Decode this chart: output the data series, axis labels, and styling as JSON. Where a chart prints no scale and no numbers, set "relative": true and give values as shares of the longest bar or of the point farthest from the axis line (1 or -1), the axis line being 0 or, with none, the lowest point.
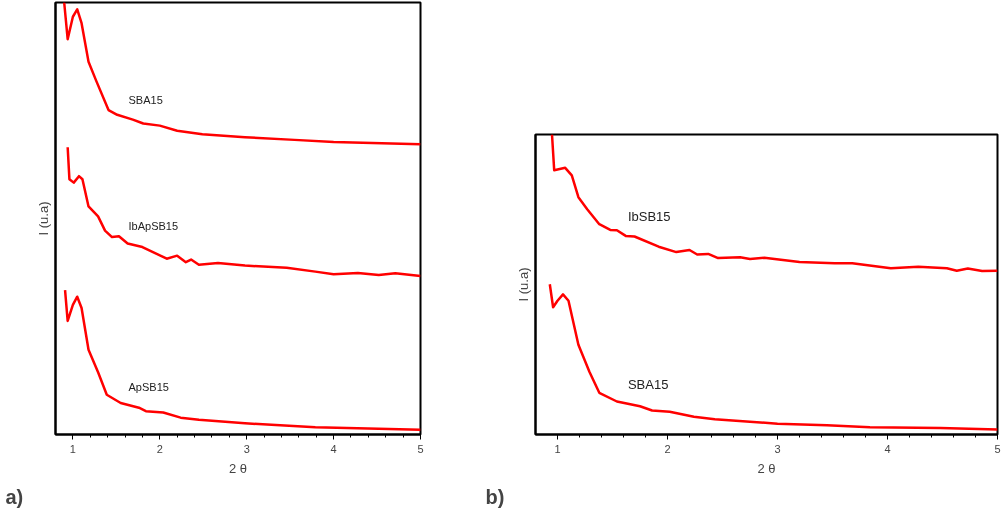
{
  "chart_data": [
    {
      "type": "line",
      "xlabel": "2 θ",
      "ylabel": "I (u.a)",
      "annotations": [
        "a)"
      ],
      "relative": true,
      "tick_labels": "x",
      "xlim": [
        0.8,
        5
      ],
      "xticks": [
        1,
        {
          "value": 1.2,
          "label": null
        },
        {
          "value": 1.4,
          "label": null
        },
        {
          "value": 1.6,
          "label": null
        },
        {
          "value": 1.8,
          "label": null
        },
        2,
        {
          "value": 2.2,
          "label": null
        },
        {
          "value": 2.4,
          "label": null
        },
        {
          "value": 2.6,
          "label": null
        },
        {
          "value": 2.8,
          "label": null
        },
        3,
        {
          "value": 3.2,
          "label": null
        },
        {
          "value": 3.4,
          "label": null
        },
        {
          "value": 3.6,
          "label": null
        },
        {
          "value": 3.8,
          "label": null
        },
        4,
        {
          "value": 4.2,
          "label": null
        },
        {
          "value": 4.4,
          "label": null
        },
        {
          "value": 4.6,
          "label": null
        },
        {
          "value": 4.8,
          "label": null
        },
        5
      ],
      "series": [
        {
          "name": "SBA15",
          "color": "#ff0000",
          "x": [
            0.9,
            0.94,
            1.0,
            1.05,
            1.1,
            1.18,
            1.27,
            1.41,
            1.51,
            1.69,
            1.81,
            2.0,
            2.2,
            2.49,
            2.98,
            3.55,
            4.0,
            5.0
          ],
          "values": [
            1.0,
            0.915,
            0.967,
            0.984,
            0.952,
            0.863,
            0.818,
            0.751,
            0.74,
            0.729,
            0.72,
            0.715,
            0.703,
            0.695,
            0.688,
            0.682,
            0.677,
            0.672
          ]
        },
        {
          "name": "IbApSB15",
          "color": "#ff0000",
          "x": [
            0.94,
            0.96,
            1.01,
            1.07,
            1.11,
            1.18,
            1.29,
            1.37,
            1.45,
            1.53,
            1.63,
            1.8,
            2.08,
            2.2,
            2.3,
            2.36,
            2.45,
            2.67,
            2.98,
            3.46,
            3.79,
            4.0,
            4.28,
            4.52,
            4.71,
            5.0
          ],
          "values": [
            0.665,
            0.591,
            0.583,
            0.598,
            0.591,
            0.528,
            0.505,
            0.472,
            0.457,
            0.459,
            0.442,
            0.434,
            0.407,
            0.414,
            0.399,
            0.405,
            0.393,
            0.397,
            0.391,
            0.386,
            0.377,
            0.371,
            0.374,
            0.369,
            0.373,
            0.367
          ]
        },
        {
          "name": "ApSB15",
          "color": "#ff0000",
          "x": [
            0.91,
            0.94,
            1.0,
            1.05,
            1.1,
            1.18,
            1.29,
            1.39,
            1.55,
            1.76,
            1.84,
            2.04,
            2.24,
            2.45,
            2.98,
            3.79,
            5.0
          ],
          "values": [
            0.334,
            0.263,
            0.3,
            0.319,
            0.293,
            0.196,
            0.144,
            0.092,
            0.073,
            0.062,
            0.054,
            0.051,
            0.039,
            0.034,
            0.026,
            0.017,
            0.011
          ]
        }
      ]
    },
    {
      "type": "line",
      "xlabel": "2 θ",
      "ylabel": "I (u.a)",
      "annotations": [
        "b)"
      ],
      "relative": true,
      "tick_labels": "x",
      "xlim": [
        0.8,
        5
      ],
      "xticks": [
        1,
        {
          "value": 1.2,
          "label": null
        },
        {
          "value": 1.4,
          "label": null
        },
        {
          "value": 1.6,
          "label": null
        },
        {
          "value": 1.8,
          "label": null
        },
        2,
        {
          "value": 2.2,
          "label": null
        },
        {
          "value": 2.4,
          "label": null
        },
        {
          "value": 2.6,
          "label": null
        },
        {
          "value": 2.8,
          "label": null
        },
        3,
        {
          "value": 3.2,
          "label": null
        },
        {
          "value": 3.4,
          "label": null
        },
        {
          "value": 3.6,
          "label": null
        },
        {
          "value": 3.8,
          "label": null
        },
        4,
        {
          "value": 4.2,
          "label": null
        },
        {
          "value": 4.4,
          "label": null
        },
        {
          "value": 4.6,
          "label": null
        },
        {
          "value": 4.8,
          "label": null
        },
        5
      ],
      "series": [
        {
          "name": "IbSB15",
          "color": "#ff0000",
          "x": [
            0.95,
            0.97,
            1.02,
            1.07,
            1.13,
            1.19,
            1.27,
            1.38,
            1.48,
            1.54,
            1.62,
            1.7,
            1.92,
            2.08,
            2.2,
            2.27,
            2.37,
            2.46,
            2.66,
            2.75,
            2.88,
            3.2,
            3.52,
            3.68,
            4.03,
            4.28,
            4.54,
            4.63,
            4.73,
            4.86,
            5.0
          ],
          "values": [
            1.0,
            0.881,
            0.885,
            0.889,
            0.864,
            0.791,
            0.751,
            0.701,
            0.682,
            0.681,
            0.662,
            0.66,
            0.626,
            0.608,
            0.615,
            0.6,
            0.602,
            0.588,
            0.591,
            0.585,
            0.589,
            0.575,
            0.571,
            0.571,
            0.554,
            0.559,
            0.554,
            0.546,
            0.553,
            0.545,
            0.546
          ]
        },
        {
          "name": "SBA15",
          "color": "#ff0000",
          "x": [
            0.93,
            0.96,
            1.0,
            1.05,
            1.1,
            1.19,
            1.29,
            1.38,
            1.54,
            1.75,
            1.86,
            2.02,
            2.24,
            2.43,
            3.0,
            3.45,
            3.84,
            4.48,
            5.0
          ],
          "values": [
            0.501,
            0.424,
            0.446,
            0.467,
            0.446,
            0.299,
            0.209,
            0.139,
            0.11,
            0.094,
            0.08,
            0.076,
            0.059,
            0.051,
            0.036,
            0.031,
            0.024,
            0.022,
            0.017
          ]
        }
      ]
    }
  ]
}
